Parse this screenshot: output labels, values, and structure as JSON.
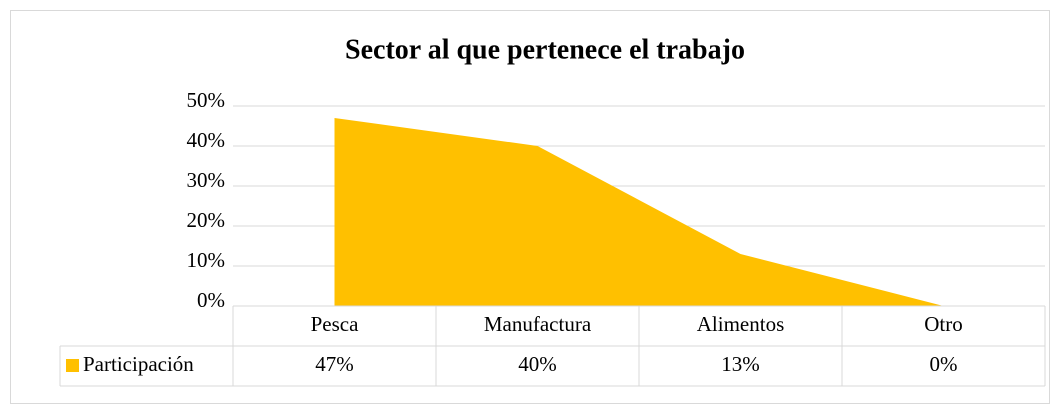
{
  "chart_data": {
    "type": "area",
    "title": "Sector al que pertenece el trabajo",
    "categories": [
      "Pesca",
      "Manufactura",
      "Alimentos",
      "Otro"
    ],
    "series": [
      {
        "name": "Participación",
        "color": "#ffc000",
        "values": [
          47,
          40,
          13,
          0
        ],
        "value_labels": [
          "47%",
          "40%",
          "13%",
          "0%"
        ]
      }
    ],
    "ylim": [
      0,
      50
    ],
    "yticks": [
      {
        "value": 0,
        "label": "0%"
      },
      {
        "value": 10,
        "label": "10%"
      },
      {
        "value": 20,
        "label": "20%"
      },
      {
        "value": 30,
        "label": "30%"
      },
      {
        "value": 40,
        "label": "40%"
      },
      {
        "value": 50,
        "label": "50%"
      }
    ],
    "grid": true,
    "data_table": true
  }
}
